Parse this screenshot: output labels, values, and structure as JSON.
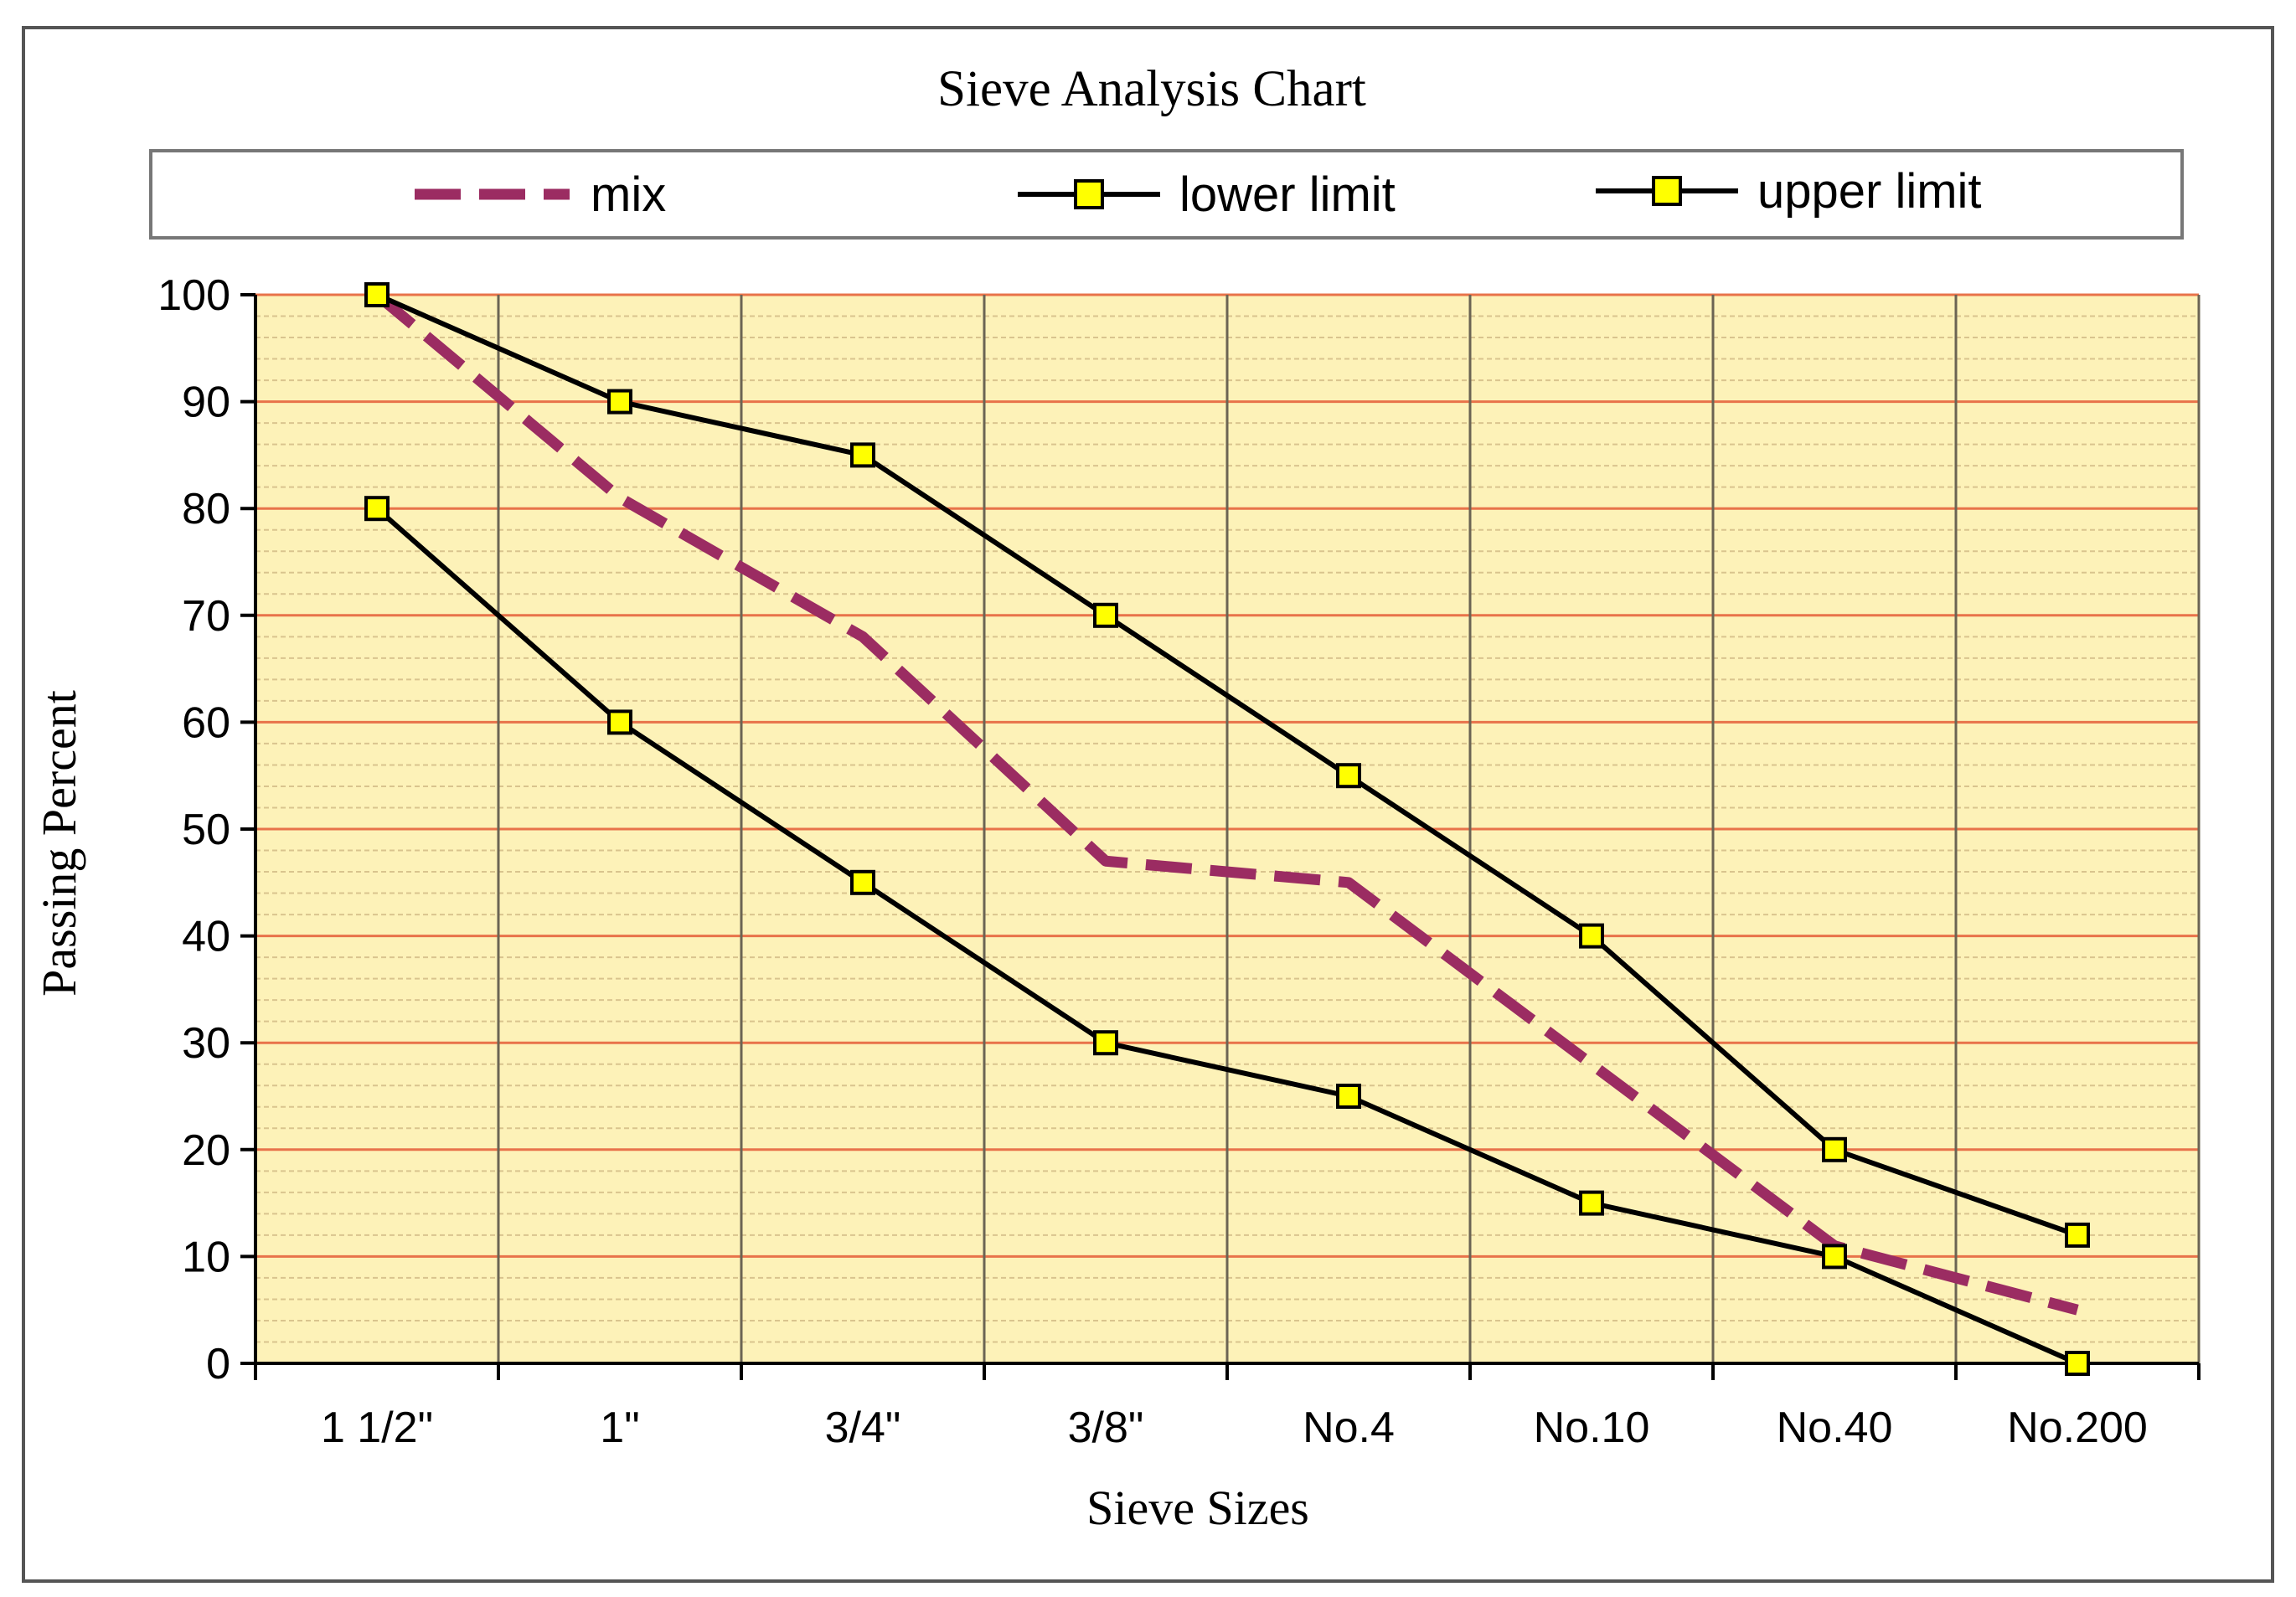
{
  "chart_data": {
    "type": "line",
    "title": "Sieve Analysis Chart",
    "xlabel": "Sieve Sizes",
    "ylabel": "Passing Percent",
    "categories": [
      "1 1/2\"",
      "1\"",
      "3/4\"",
      "3/8\"",
      "No.4",
      "No.10",
      "No.40",
      "No.200"
    ],
    "ylim": [
      0,
      100
    ],
    "yticks": [
      0,
      10,
      20,
      30,
      40,
      50,
      60,
      70,
      80,
      90,
      100
    ],
    "grid": true,
    "legend_position": "top",
    "series": [
      {
        "name": "mix",
        "values": [
          100,
          81,
          68,
          47,
          45,
          28,
          11,
          5
        ],
        "color": "#9b2c62",
        "style": "dashed"
      },
      {
        "name": "lower limit",
        "values": [
          80,
          60,
          45,
          30,
          25,
          15,
          10,
          0
        ],
        "color": "#000000",
        "marker": "square",
        "marker_color": "#ffff00"
      },
      {
        "name": "upper limit",
        "values": [
          100,
          90,
          85,
          70,
          55,
          40,
          20,
          12
        ],
        "color": "#000000",
        "marker": "square",
        "marker_color": "#ffff00"
      }
    ],
    "colors": {
      "plot_background": "#fdf2b8",
      "major_grid": "#e8734a",
      "minor_grid": "#d9c48e",
      "vertical_grid": "#6b6453"
    }
  }
}
